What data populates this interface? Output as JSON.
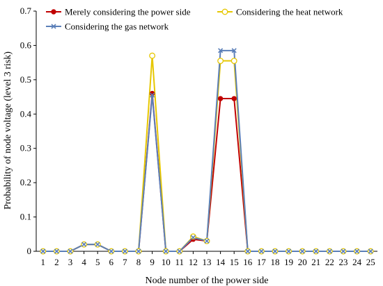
{
  "chart_data": {
    "type": "line",
    "xlabel": "Node number of the power side",
    "ylabel": "Probability of node voltage (level 3 risk)",
    "x": [
      1,
      2,
      3,
      4,
      5,
      6,
      7,
      8,
      9,
      10,
      11,
      12,
      13,
      14,
      15,
      16,
      17,
      18,
      19,
      20,
      21,
      22,
      23,
      24,
      25
    ],
    "ylim": [
      0,
      0.7
    ],
    "yticks": [
      0,
      0.1,
      0.2,
      0.3,
      0.4,
      0.5,
      0.6,
      0.7
    ],
    "yticklabels": [
      "0",
      "0.1",
      "0.2",
      "0.3",
      "0.4",
      "0.5",
      "0.6",
      "0.7"
    ],
    "grid": false,
    "legend_position": "top",
    "series": [
      {
        "name": "Merely considering the power side",
        "color": "#c00000",
        "marker": "filled-circle",
        "values": [
          0,
          0,
          0,
          0.02,
          0.02,
          0,
          0,
          0,
          0.46,
          0,
          0,
          0.035,
          0.03,
          0.445,
          0.445,
          0,
          0,
          0,
          0,
          0,
          0,
          0,
          0,
          0,
          0
        ]
      },
      {
        "name": "Considering the heat network",
        "color": "#e6c700",
        "marker": "open-circle",
        "values": [
          0,
          0,
          0,
          0.02,
          0.02,
          0,
          0,
          0,
          0.57,
          0,
          0,
          0.043,
          0.03,
          0.555,
          0.555,
          0,
          0,
          0,
          0,
          0,
          0,
          0,
          0,
          0,
          0
        ]
      },
      {
        "name": "Considering the gas network",
        "color": "#5b7fb8",
        "marker": "x",
        "values": [
          0,
          0,
          0,
          0.02,
          0.02,
          0,
          0,
          0,
          0.455,
          0,
          0,
          0.04,
          0.03,
          0.585,
          0.585,
          0,
          0,
          0,
          0,
          0,
          0,
          0,
          0,
          0,
          0
        ]
      }
    ]
  }
}
